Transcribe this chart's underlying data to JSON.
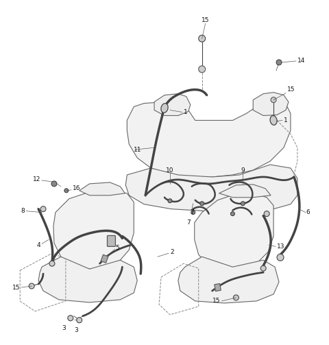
{
  "background_color": "#ffffff",
  "line_color": "#2a2a2a",
  "seat_fill": "#f0f0f0",
  "seat_stroke": "#555555",
  "belt_color": "#333333",
  "label_color": "#111111",
  "label_fontsize": 6.5,
  "figsize": [
    4.8,
    5.03
  ],
  "dpi": 100
}
